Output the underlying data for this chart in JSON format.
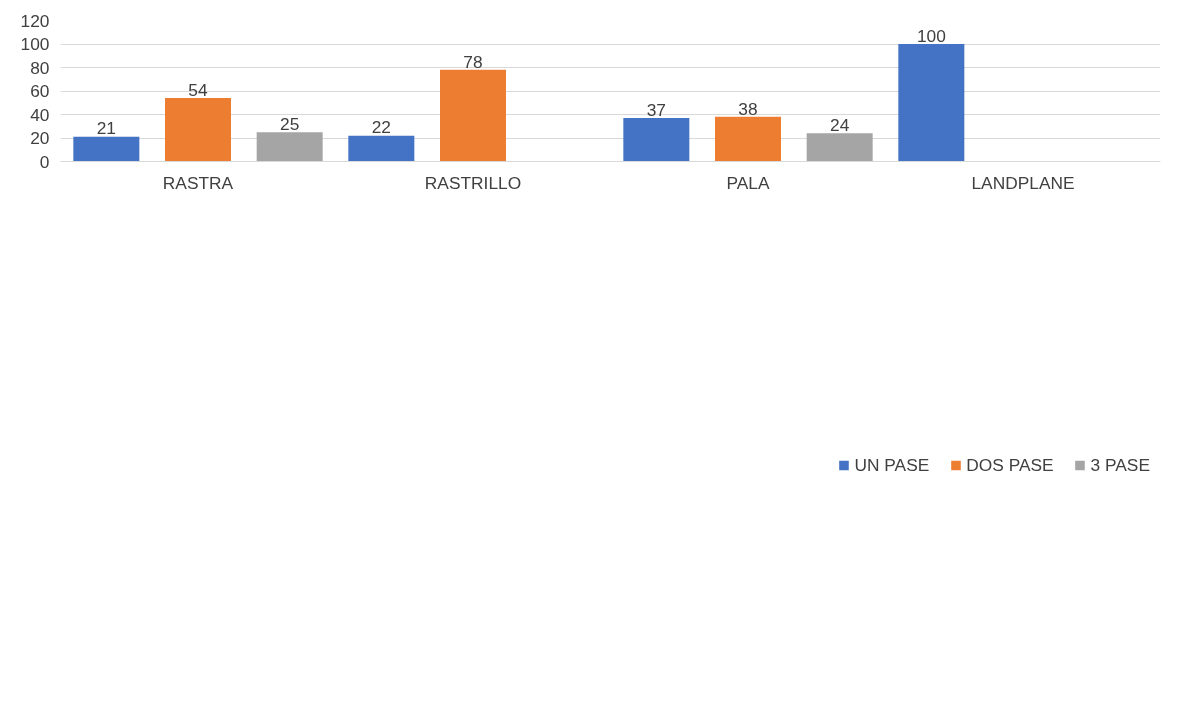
{
  "chart_data": {
    "type": "bar",
    "categories": [
      "RASTRA",
      "RASTRILLO",
      "PALA",
      "LANDPLANE"
    ],
    "series": [
      {
        "name": "UN PASE",
        "color": "#4472c4",
        "values": [
          21,
          22,
          37,
          100
        ]
      },
      {
        "name": "DOS PASE",
        "color": "#ed7d31",
        "values": [
          54,
          78,
          38,
          null
        ]
      },
      {
        "name": "3 PASE",
        "color": "#a5a5a5",
        "values": [
          25,
          null,
          24,
          null
        ]
      }
    ],
    "ylim": [
      0,
      120
    ],
    "yticks": [
      0,
      20,
      40,
      60,
      80,
      100,
      120
    ],
    "grid": "y",
    "legend": "bottom",
    "data_labels": true
  }
}
